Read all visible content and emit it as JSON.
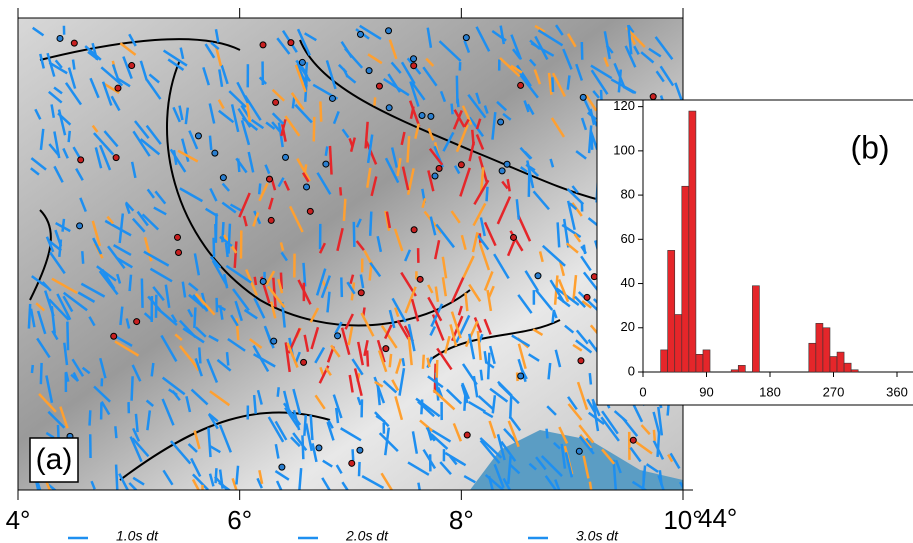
{
  "map": {
    "panel_label": "(a)",
    "xlim": [
      4,
      10
    ],
    "xticks": [
      {
        "value": 4,
        "label": "4°"
      },
      {
        "value": 6,
        "label": "6°"
      },
      {
        "value": 8,
        "label": "8°"
      },
      {
        "value": 10,
        "label": "10°"
      }
    ],
    "ylim": [
      44,
      46.1
    ],
    "yticks": [
      {
        "value": 44,
        "label": "44°"
      }
    ],
    "legend": [
      {
        "name": "1.0s dt",
        "color": "#1e8ff0"
      },
      {
        "name": "2.0s dt",
        "color": "#1e8ff0"
      },
      {
        "name": "3.0s dt",
        "color": "#1e8ff0"
      }
    ]
  },
  "chart_data": {
    "type": "histogram",
    "label": "(b)",
    "color": "#e5262a",
    "bins": [
      25,
      35,
      45,
      55,
      65,
      75,
      85,
      95,
      105,
      115,
      125,
      135,
      145,
      155,
      165,
      175,
      185,
      195,
      205,
      215,
      225,
      235,
      245,
      255,
      265,
      275,
      285,
      295,
      305
    ],
    "values": [
      10,
      55,
      26,
      84,
      118,
      8,
      10,
      0,
      0,
      0,
      1,
      3,
      0,
      39,
      0,
      0,
      0,
      0,
      0,
      0,
      0,
      13,
      22,
      20,
      7,
      9,
      4,
      1
    ],
    "xlim": [
      0,
      360
    ],
    "xticks": [
      0,
      90,
      180,
      270,
      360
    ],
    "ylim": [
      0,
      123
    ],
    "yticks": [
      0,
      20,
      40,
      60,
      80,
      100,
      120
    ]
  }
}
